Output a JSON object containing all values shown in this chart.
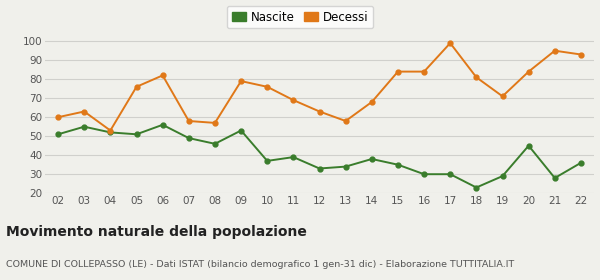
{
  "years": [
    "02",
    "03",
    "04",
    "05",
    "06",
    "07",
    "08",
    "09",
    "10",
    "11",
    "12",
    "13",
    "14",
    "15",
    "16",
    "17",
    "18",
    "19",
    "20",
    "21",
    "22"
  ],
  "nascite": [
    51,
    55,
    52,
    51,
    56,
    49,
    46,
    53,
    37,
    39,
    33,
    34,
    38,
    35,
    30,
    30,
    23,
    29,
    45,
    28,
    36
  ],
  "decessi": [
    60,
    63,
    53,
    76,
    82,
    58,
    57,
    79,
    76,
    69,
    63,
    58,
    68,
    84,
    84,
    99,
    81,
    71,
    84,
    95,
    93
  ],
  "nascite_color": "#3a7d2c",
  "decessi_color": "#e07818",
  "bg_color": "#f0f0eb",
  "grid_color": "#d0d0cc",
  "title": "Movimento naturale della popolazione",
  "subtitle": "COMUNE DI COLLEPASSO (LE) - Dati ISTAT (bilancio demografico 1 gen-31 dic) - Elaborazione TUTTITALIA.IT",
  "legend_nascite": "Nascite",
  "legend_decessi": "Decessi",
  "ylim": [
    20,
    104
  ],
  "yticks": [
    20,
    30,
    40,
    50,
    60,
    70,
    80,
    90,
    100
  ],
  "title_fontsize": 10,
  "subtitle_fontsize": 6.8,
  "tick_fontsize": 7.5,
  "legend_fontsize": 8.5
}
